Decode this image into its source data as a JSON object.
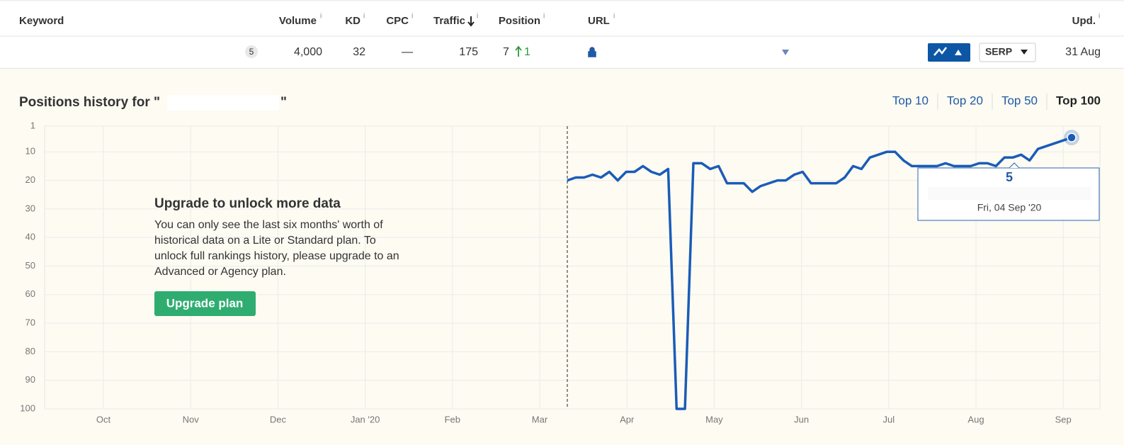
{
  "table": {
    "headers": {
      "keyword": "Keyword",
      "volume": "Volume",
      "kd": "KD",
      "cpc": "CPC",
      "traffic": "Traffic",
      "position": "Position",
      "url": "URL",
      "updated": "Upd."
    },
    "info_icon": "i",
    "row": {
      "badge": "5",
      "volume": "4,000",
      "kd": "32",
      "cpc": "—",
      "traffic": "175",
      "position": "7",
      "position_change": "1",
      "serp_button": "SERP",
      "updated": "31 Aug"
    }
  },
  "panel": {
    "title_prefix": "Positions history for \"",
    "title_suffix": "\"",
    "tabs": [
      "Top 10",
      "Top 20",
      "Top 50",
      "Top 100"
    ],
    "active_tab": 3,
    "upgrade_title": "Upgrade to unlock more data",
    "upgrade_text": [
      "You can only see the last six months' worth of",
      "historical data on a Lite or Standard plan. To",
      "unlock full rankings history, please upgrade to an",
      "Advanced or Agency plan."
    ],
    "upgrade_button": "Upgrade plan"
  },
  "chart_data": {
    "type": "line",
    "xticks": [
      "Oct",
      "Nov",
      "Dec",
      "Jan '20",
      "Feb",
      "Mar",
      "Apr",
      "May",
      "Jun",
      "Jul",
      "Aug",
      "Sep"
    ],
    "ylim": [
      1,
      100
    ],
    "y_inverted": true,
    "yticks": [
      1,
      10,
      20,
      30,
      40,
      50,
      60,
      70,
      80,
      90,
      100
    ],
    "grid": true,
    "series": [
      {
        "name": "Position",
        "color": "#1a5cb8",
        "values": [
          20,
          19,
          19,
          18,
          19,
          17,
          20,
          17,
          17,
          15,
          17,
          18,
          16,
          100,
          100,
          14,
          14,
          16,
          15,
          21,
          21,
          21,
          24,
          22,
          21,
          20,
          20,
          18,
          17,
          21,
          21,
          21,
          21,
          19,
          15,
          16,
          12,
          11,
          10,
          10,
          13,
          15,
          15,
          15,
          15,
          14,
          15,
          15,
          15,
          14,
          14,
          15,
          12,
          12,
          11,
          13,
          9,
          8,
          7,
          6,
          5
        ]
      }
    ],
    "tooltip_date": "Fri, 04 Sep '20"
  }
}
